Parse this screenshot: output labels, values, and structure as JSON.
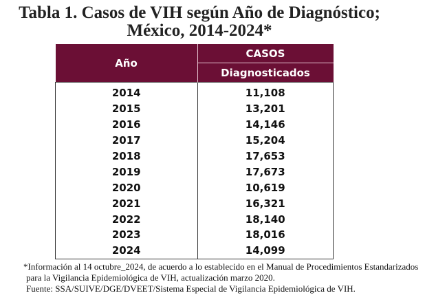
{
  "title": {
    "line1": "Tabla 1. Casos de VIH según Año de Diagnóstico;",
    "line2": "México, 2014-2024*"
  },
  "colors": {
    "header_bg": "#6b0f35"
  },
  "table": {
    "col_year": "Año",
    "col_cases_top": "CASOS",
    "col_cases_sub": "Diagnosticados",
    "rows": [
      {
        "year": "2014",
        "cases": "11,108"
      },
      {
        "year": "2015",
        "cases": "13,201"
      },
      {
        "year": "2016",
        "cases": "14,146"
      },
      {
        "year": "2017",
        "cases": "15,204"
      },
      {
        "year": "2018",
        "cases": "17,653"
      },
      {
        "year": "2019",
        "cases": "17,673"
      },
      {
        "year": "2020",
        "cases": "10,619"
      },
      {
        "year": "2021",
        "cases": "16,321"
      },
      {
        "year": "2022",
        "cases": "18,140"
      },
      {
        "year": "2023",
        "cases": "18,016"
      },
      {
        "year": "2024",
        "cases": "14,099"
      }
    ]
  },
  "notes": [
    "*Información al 14 octubre_2024, de acuerdo a lo establecido en el Manual de Procedimientos Estandarizados",
    "para la Vigilancia Epidemiológica de VIH, actualización marzo 2020.",
    "Fuente: SSA/SUIVE/DGE/DVEET/Sistema Especial de Vigilancia Epidemiológica de VIH."
  ]
}
